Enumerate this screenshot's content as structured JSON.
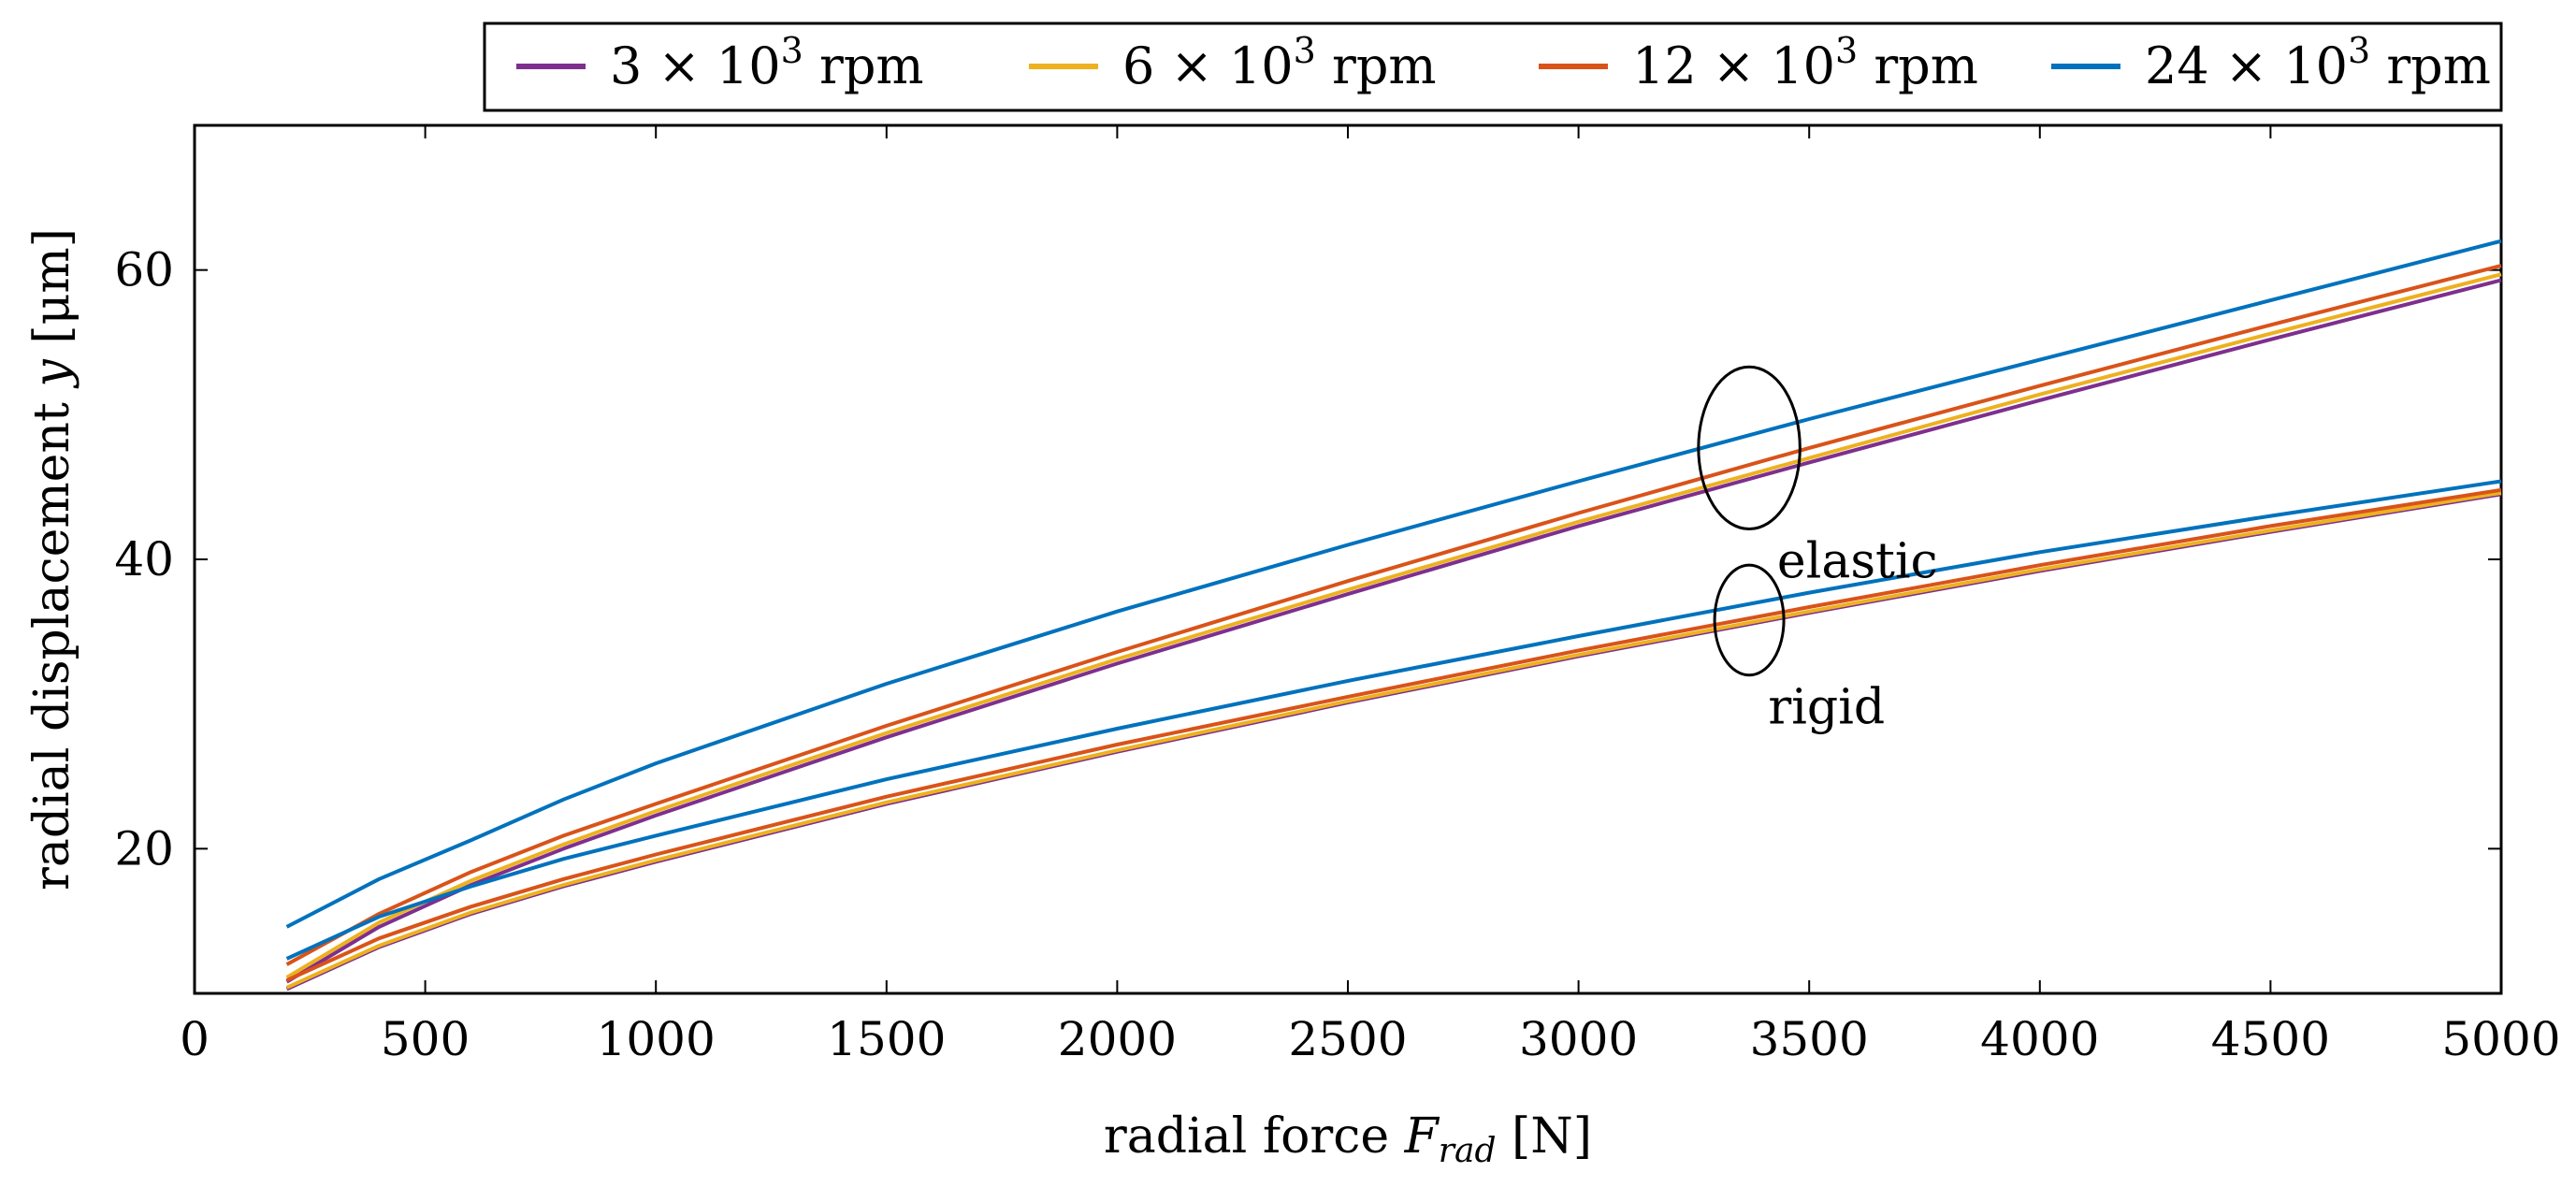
{
  "chart_data": {
    "type": "line",
    "title": "",
    "xlabel": "radial force",
    "xlabel_symbol": "F",
    "xlabel_subscript": "rad",
    "xlabel_unit": "[N]",
    "ylabel": "radial displacement",
    "ylabel_symbol": "y",
    "ylabel_unit": "[μm]",
    "xlim": [
      0,
      5000
    ],
    "ylim": [
      10,
      70
    ],
    "xticks": [
      0,
      500,
      1000,
      1500,
      2000,
      2500,
      3000,
      3500,
      4000,
      4500,
      5000
    ],
    "yticks": [
      20,
      40,
      60
    ],
    "grid": false,
    "legend_position": "top",
    "legend": [
      {
        "base": "3",
        "exp": "3",
        "unit": "rpm",
        "color": "#7E2F8E"
      },
      {
        "base": "6",
        "exp": "3",
        "unit": "rpm",
        "color": "#EDB120"
      },
      {
        "base": "12",
        "exp": "3",
        "unit": "rpm",
        "color": "#D95319"
      },
      {
        "base": "24",
        "exp": "3",
        "unit": "rpm",
        "color": "#0072BD"
      }
    ],
    "x": [
      200,
      400,
      600,
      800,
      1000,
      1500,
      2000,
      2500,
      3000,
      3500,
      4000,
      4500,
      5000
    ],
    "series": [
      {
        "name": "3×10^3 rpm elastic",
        "color": "#7E2F8E",
        "values": [
          10.8,
          14.6,
          17.5,
          20.0,
          22.3,
          27.7,
          32.8,
          37.6,
          42.3,
          46.7,
          51.0,
          55.2,
          59.3
        ]
      },
      {
        "name": "6×10^3 rpm elastic",
        "color": "#EDB120",
        "values": [
          11.1,
          14.9,
          17.8,
          20.3,
          22.6,
          28.0,
          33.1,
          37.9,
          42.6,
          47.0,
          51.4,
          55.6,
          59.7
        ]
      },
      {
        "name": "12×10^3 rpm elastic",
        "color": "#D95319",
        "values": [
          12.0,
          15.5,
          18.4,
          20.9,
          23.1,
          28.5,
          33.6,
          38.5,
          43.2,
          47.7,
          52.0,
          56.2,
          60.3
        ]
      },
      {
        "name": "24×10^3 rpm elastic",
        "color": "#0072BD",
        "values": [
          14.6,
          17.9,
          20.6,
          23.4,
          25.9,
          31.4,
          36.4,
          41.0,
          45.4,
          49.7,
          53.8,
          57.9,
          62.0
        ]
      },
      {
        "name": "3×10^3 rpm rigid",
        "color": "#7E2F8E",
        "values": [
          10.3,
          13.2,
          15.5,
          17.4,
          19.1,
          23.1,
          26.7,
          30.1,
          33.3,
          36.3,
          39.2,
          41.9,
          44.5
        ]
      },
      {
        "name": "6×10^3 rpm rigid",
        "color": "#EDB120",
        "values": [
          10.4,
          13.3,
          15.6,
          17.5,
          19.2,
          23.2,
          26.8,
          30.2,
          33.4,
          36.4,
          39.3,
          42.0,
          44.6
        ]
      },
      {
        "name": "12×10^3 rpm rigid",
        "color": "#D95319",
        "values": [
          10.9,
          13.8,
          16.0,
          17.9,
          19.6,
          23.6,
          27.2,
          30.5,
          33.7,
          36.7,
          39.6,
          42.3,
          44.8
        ]
      },
      {
        "name": "24×10^3 rpm rigid",
        "color": "#0072BD",
        "values": [
          12.4,
          15.3,
          17.4,
          19.3,
          20.9,
          24.8,
          28.3,
          31.6,
          34.7,
          37.7,
          40.5,
          43.0,
          45.4
        ]
      }
    ],
    "annotations": [
      {
        "text": "elastic",
        "x": 3370,
        "y": 47.7,
        "rx": 110,
        "ry": 5.6
      },
      {
        "text": "rigid",
        "x": 3370,
        "y": 35.8,
        "rx": 75,
        "ry": 3.8
      }
    ]
  }
}
